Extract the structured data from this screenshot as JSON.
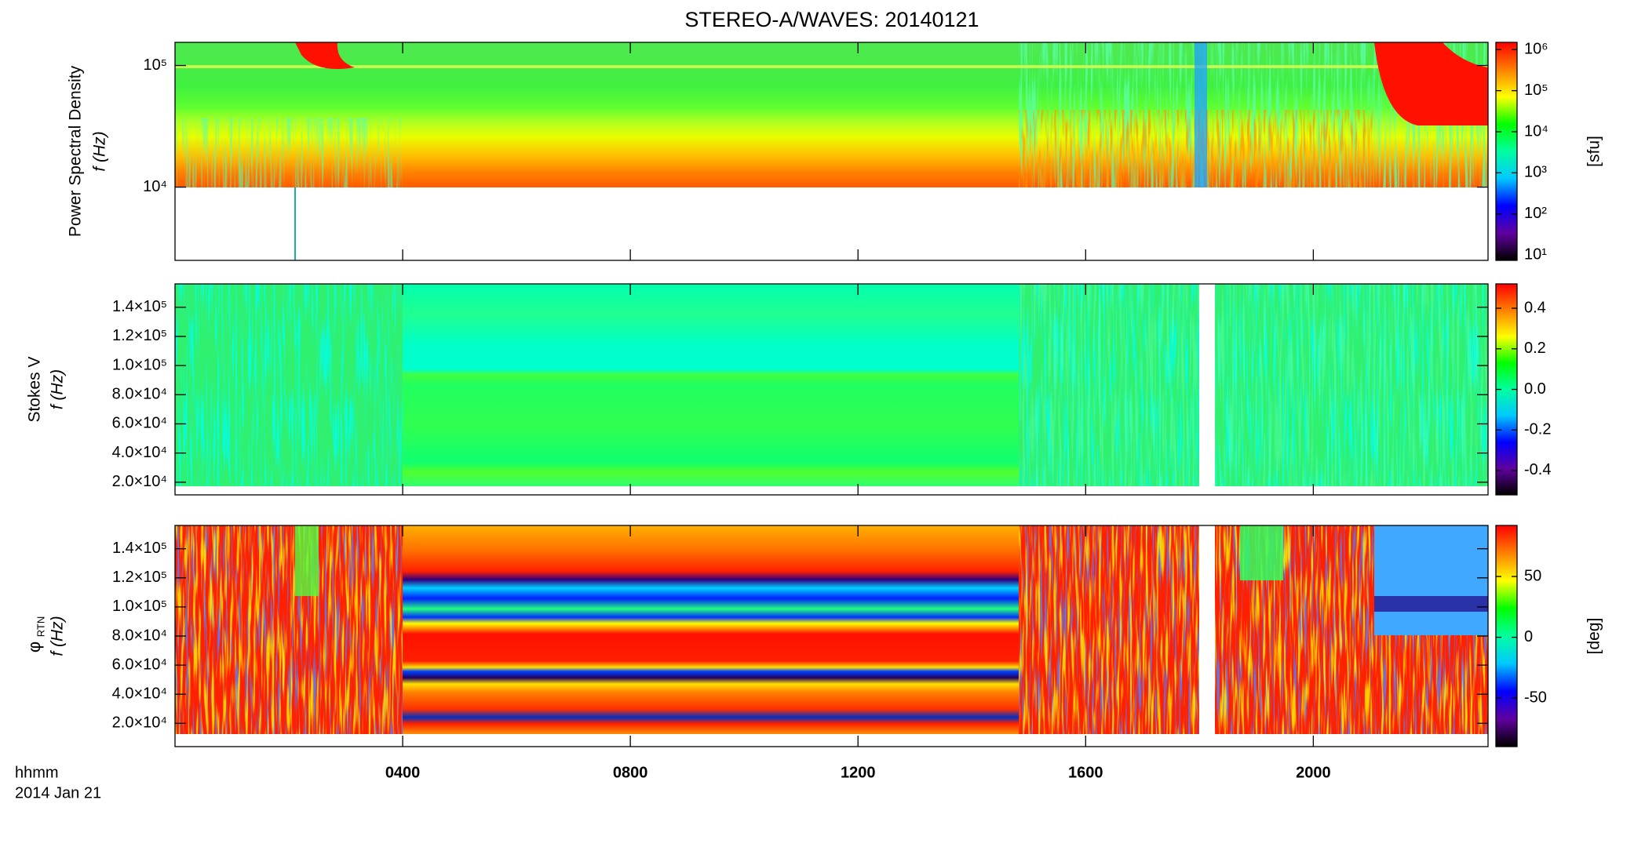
{
  "chart_data": [
    {
      "type": "heatmap",
      "title": "STEREO-A/WAVES: 20140121",
      "quantity": "Power Spectral Density",
      "ylabel": "f (Hz)",
      "ylog": true,
      "ylim": [
        2500,
        155000
      ],
      "yticks": [
        {
          "value": 10000,
          "label": "10⁴"
        },
        {
          "value": 100000,
          "label": "10⁵"
        }
      ],
      "colorbar": {
        "label": "[sfu]",
        "log": true,
        "lim": [
          7.4,
          1500000
        ],
        "ticks": [
          {
            "value": 10,
            "label": "10¹"
          },
          {
            "value": 100,
            "label": "10²"
          },
          {
            "value": 1000,
            "label": "10³"
          },
          {
            "value": 10000,
            "label": "10⁴"
          },
          {
            "value": 100000,
            "label": "10⁵"
          },
          {
            "value": 1000000,
            "label": "10⁶"
          }
        ]
      }
    },
    {
      "type": "heatmap",
      "quantity": "Stokes V",
      "ylabel": "f (Hz)",
      "ylog": false,
      "ylim": [
        11300,
        156000
      ],
      "yticks": [
        {
          "value": 20000,
          "label": "2.0×10⁴"
        },
        {
          "value": 40000,
          "label": "4.0×10⁴"
        },
        {
          "value": 60000,
          "label": "6.0×10⁴"
        },
        {
          "value": 80000,
          "label": "8.0×10⁴"
        },
        {
          "value": 100000,
          "label": "1.0×10⁵"
        },
        {
          "value": 120000,
          "label": "1.2×10⁵"
        },
        {
          "value": 140000,
          "label": "1.4×10⁵"
        }
      ],
      "colorbar": {
        "log": false,
        "lim": [
          -0.52,
          0.52
        ],
        "ticks": [
          -0.4,
          -0.2,
          {
            "value": 0,
            "label": "0.0"
          },
          0.2,
          0.4
        ]
      }
    },
    {
      "type": "heatmap",
      "quantity": "φ",
      "quantity_sub": "RTN",
      "ylabel": "f (Hz)",
      "ylog": false,
      "ylim": [
        4000,
        156000
      ],
      "yticks": [
        {
          "value": 20000,
          "label": "2.0×10⁴"
        },
        {
          "value": 40000,
          "label": "4.0×10⁴"
        },
        {
          "value": 60000,
          "label": "6.0×10⁴"
        },
        {
          "value": 80000,
          "label": "8.0×10⁴"
        },
        {
          "value": 100000,
          "label": "1.0×10⁵"
        },
        {
          "value": 120000,
          "label": "1.2×10⁵"
        },
        {
          "value": 140000,
          "label": "1.4×10⁵"
        }
      ],
      "colorbar": {
        "label": "[deg]",
        "log": false,
        "lim": [
          -90,
          92
        ],
        "ticks": [
          -50,
          0,
          50
        ]
      },
      "xlabel": "hhmm",
      "xlabel_date": "2014 Jan 21",
      "xlim": [
        0,
        23.07
      ],
      "xticks": [
        {
          "value": 4,
          "label": "0400"
        },
        {
          "value": 8,
          "label": "0800"
        },
        {
          "value": 12,
          "label": "1200"
        },
        {
          "value": 16,
          "label": "1600"
        },
        {
          "value": 20,
          "label": "2000"
        }
      ]
    }
  ],
  "colormap": [
    "#000000",
    "#6000a0",
    "#0000ff",
    "#00c8ff",
    "#00ffa0",
    "#00ff00",
    "#ffff00",
    "#ff8000",
    "#ff0000"
  ]
}
